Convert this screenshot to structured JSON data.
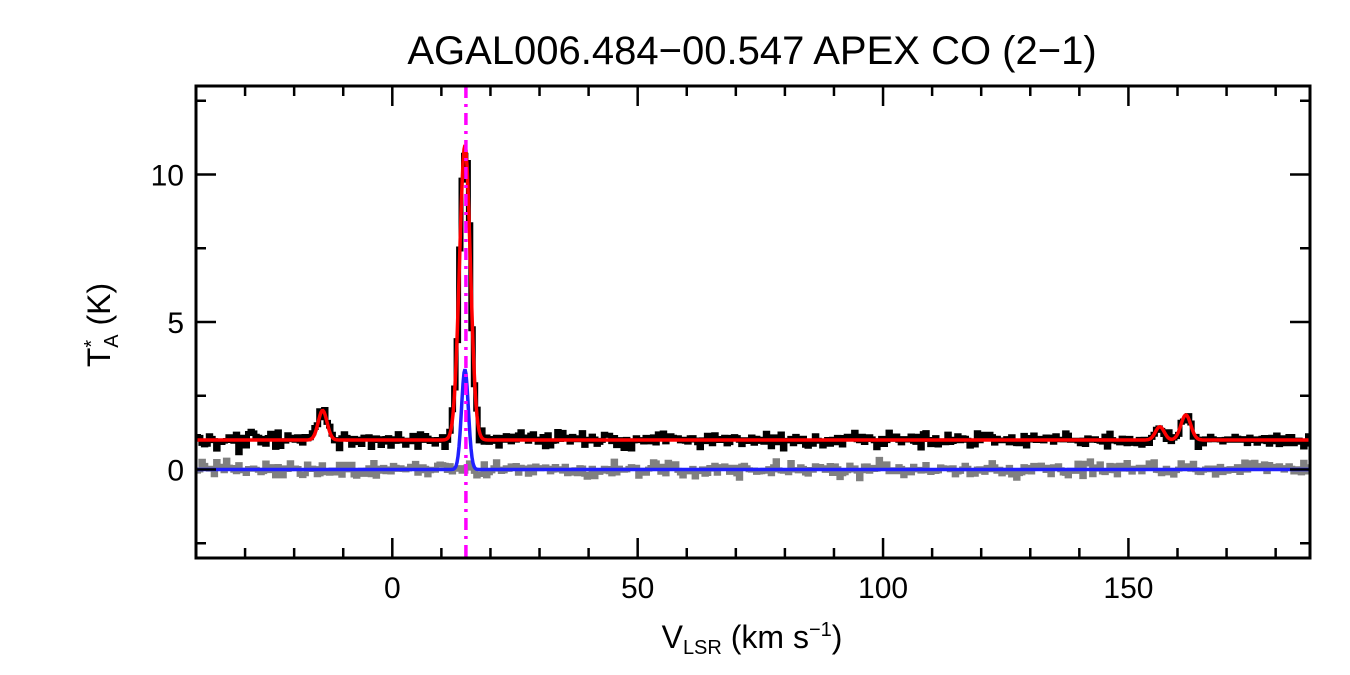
{
  "chart_data": {
    "type": "line",
    "title": "AGAL006.484−00.547  APEX CO (2−1)",
    "xlabel": {
      "main": "V",
      "sub": "LSR",
      "rest": " (km s",
      "sup": "−1",
      "end": ")"
    },
    "ylabel": {
      "main": "T",
      "sup": "*",
      "sub": "A",
      "rest": " (K)"
    },
    "xlim": [
      -40,
      187
    ],
    "ylim": [
      -3,
      13
    ],
    "xticks": [
      0,
      50,
      100,
      150
    ],
    "xtick_labels": [
      "0",
      "50",
      "100",
      "150"
    ],
    "yticks": [
      0,
      5,
      10
    ],
    "ytick_labels": [
      "0",
      "5",
      "10"
    ],
    "grid": false,
    "marker_velocity": 15,
    "colors": {
      "spectrum": "#000000",
      "residual": "#808080",
      "fit": "#ff0000",
      "component": "#2020ff",
      "marker": "#ff00ff"
    },
    "series": [
      {
        "role": "spectrum",
        "baseline_offset": 1.0,
        "noise_rms": 0.12
      },
      {
        "role": "residual",
        "baseline_offset": 0.0,
        "noise_rms": 0.12
      },
      {
        "role": "fit",
        "baseline_offset": 1.0,
        "components": [
          {
            "center": -14.2,
            "amplitude": 1.0,
            "sigma": 0.9
          },
          {
            "center": 14.8,
            "amplitude": 10.0,
            "sigma": 1.1
          },
          {
            "center": 156.4,
            "amplitude": 0.45,
            "sigma": 0.9
          },
          {
            "center": 161.7,
            "amplitude": 0.85,
            "sigma": 1.0
          }
        ]
      },
      {
        "role": "component",
        "baseline_offset": 0.0,
        "components": [
          {
            "center": 14.8,
            "amplitude": 3.4,
            "sigma": 0.7
          }
        ]
      }
    ]
  }
}
